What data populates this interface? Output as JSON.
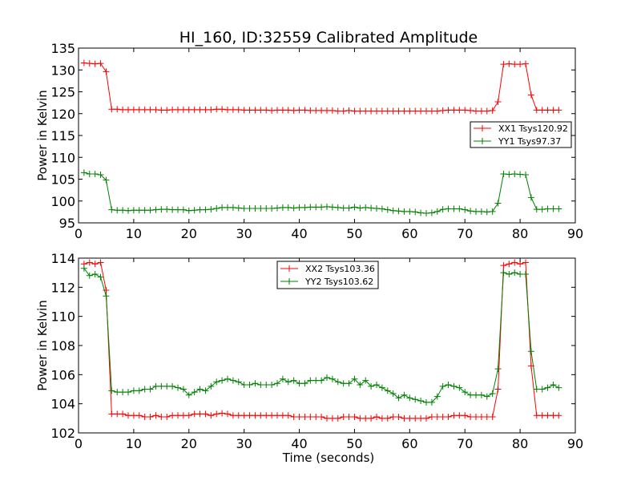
{
  "chart_data": [
    {
      "type": "line",
      "title": "HI_160, ID:32559 Calibrated Amplitude",
      "xlabel": "",
      "ylabel": "Power in Kelvin",
      "xlim": [
        0,
        90
      ],
      "ylim": [
        95,
        135
      ],
      "xticks": [
        "0",
        "10",
        "20",
        "30",
        "40",
        "50",
        "60",
        "70",
        "80",
        "90"
      ],
      "yticks": [
        "95",
        "100",
        "105",
        "110",
        "115",
        "120",
        "125",
        "130",
        "135"
      ],
      "grid": false,
      "legend_position": "right",
      "x": [
        1,
        2,
        3,
        4,
        5,
        6,
        7,
        8,
        9,
        10,
        11,
        12,
        13,
        14,
        15,
        16,
        17,
        18,
        19,
        20,
        21,
        22,
        23,
        24,
        25,
        26,
        27,
        28,
        29,
        30,
        31,
        32,
        33,
        34,
        35,
        36,
        37,
        38,
        39,
        40,
        41,
        42,
        43,
        44,
        45,
        46,
        47,
        48,
        49,
        50,
        51,
        52,
        53,
        54,
        55,
        56,
        57,
        58,
        59,
        60,
        61,
        62,
        63,
        64,
        65,
        66,
        67,
        68,
        69,
        70,
        71,
        72,
        73,
        74,
        75,
        76,
        77,
        78,
        79,
        80,
        81,
        82,
        83,
        84,
        85,
        86,
        87
      ],
      "series": [
        {
          "name": "XX1 Tsys120.92",
          "color": "#ff0000",
          "values": [
            131.6,
            131.5,
            131.4,
            131.5,
            129.6,
            121.0,
            121.0,
            120.9,
            120.9,
            120.9,
            120.9,
            120.9,
            120.9,
            120.9,
            120.8,
            120.8,
            120.9,
            120.9,
            120.9,
            120.9,
            120.9,
            120.9,
            120.9,
            120.9,
            121.0,
            121.0,
            120.9,
            120.9,
            120.9,
            120.8,
            120.8,
            120.8,
            120.8,
            120.8,
            120.7,
            120.8,
            120.8,
            120.8,
            120.7,
            120.8,
            120.8,
            120.7,
            120.7,
            120.7,
            120.7,
            120.7,
            120.6,
            120.6,
            120.7,
            120.6,
            120.6,
            120.6,
            120.6,
            120.6,
            120.6,
            120.6,
            120.6,
            120.6,
            120.6,
            120.6,
            120.6,
            120.6,
            120.6,
            120.6,
            120.6,
            120.7,
            120.8,
            120.8,
            120.8,
            120.8,
            120.7,
            120.6,
            120.6,
            120.6,
            120.7,
            122.7,
            131.3,
            131.4,
            131.3,
            131.3,
            131.4,
            124.3,
            120.8,
            120.8,
            120.8,
            120.8,
            120.8
          ]
        },
        {
          "name": "YY1 Tsys97.37",
          "color": "#008000",
          "values": [
            106.5,
            106.2,
            106.2,
            106.0,
            104.8,
            98.0,
            97.9,
            97.9,
            97.8,
            97.9,
            97.9,
            97.9,
            97.9,
            98.0,
            98.1,
            98.1,
            98.0,
            98.0,
            98.0,
            97.8,
            97.9,
            98.0,
            98.0,
            98.1,
            98.3,
            98.5,
            98.5,
            98.5,
            98.4,
            98.3,
            98.3,
            98.3,
            98.3,
            98.3,
            98.3,
            98.4,
            98.5,
            98.5,
            98.4,
            98.5,
            98.5,
            98.6,
            98.6,
            98.6,
            98.7,
            98.6,
            98.5,
            98.4,
            98.4,
            98.6,
            98.4,
            98.5,
            98.4,
            98.3,
            98.2,
            98.0,
            97.8,
            97.7,
            97.6,
            97.6,
            97.5,
            97.3,
            97.2,
            97.3,
            97.6,
            98.1,
            98.2,
            98.2,
            98.2,
            98.0,
            97.7,
            97.6,
            97.6,
            97.5,
            97.6,
            99.5,
            106.2,
            106.1,
            106.2,
            106.1,
            106.0,
            100.8,
            98.1,
            98.1,
            98.2,
            98.2,
            98.2
          ]
        }
      ]
    },
    {
      "type": "line",
      "title": "",
      "xlabel": "Time (seconds)",
      "ylabel": "Power in Kelvin",
      "xlim": [
        0,
        90
      ],
      "ylim": [
        102,
        114
      ],
      "xticks": [
        "0",
        "10",
        "20",
        "30",
        "40",
        "50",
        "60",
        "70",
        "80",
        "90"
      ],
      "yticks": [
        "102",
        "104",
        "106",
        "108",
        "110",
        "112",
        "114"
      ],
      "grid": false,
      "legend_position": "top-center",
      "x": [
        1,
        2,
        3,
        4,
        5,
        6,
        7,
        8,
        9,
        10,
        11,
        12,
        13,
        14,
        15,
        16,
        17,
        18,
        19,
        20,
        21,
        22,
        23,
        24,
        25,
        26,
        27,
        28,
        29,
        30,
        31,
        32,
        33,
        34,
        35,
        36,
        37,
        38,
        39,
        40,
        41,
        42,
        43,
        44,
        45,
        46,
        47,
        48,
        49,
        50,
        51,
        52,
        53,
        54,
        55,
        56,
        57,
        58,
        59,
        60,
        61,
        62,
        63,
        64,
        65,
        66,
        67,
        68,
        69,
        70,
        71,
        72,
        73,
        74,
        75,
        76,
        77,
        78,
        79,
        80,
        81,
        82,
        83,
        84,
        85,
        86,
        87
      ],
      "series": [
        {
          "name": "XX2 Tsys103.36",
          "color": "#ff0000",
          "values": [
            113.6,
            113.7,
            113.6,
            113.7,
            111.8,
            103.3,
            103.3,
            103.3,
            103.2,
            103.2,
            103.2,
            103.1,
            103.1,
            103.2,
            103.1,
            103.1,
            103.2,
            103.2,
            103.2,
            103.2,
            103.3,
            103.3,
            103.3,
            103.2,
            103.3,
            103.35,
            103.3,
            103.2,
            103.2,
            103.2,
            103.2,
            103.2,
            103.2,
            103.2,
            103.2,
            103.2,
            103.2,
            103.2,
            103.1,
            103.1,
            103.1,
            103.1,
            103.1,
            103.1,
            103.0,
            103.0,
            103.0,
            103.1,
            103.1,
            103.1,
            103.0,
            103.0,
            103.0,
            103.1,
            103.0,
            103.0,
            103.1,
            103.1,
            103.0,
            103.0,
            103.0,
            103.0,
            103.0,
            103.1,
            103.1,
            103.1,
            103.1,
            103.2,
            103.2,
            103.2,
            103.1,
            103.1,
            103.1,
            103.1,
            103.1,
            105.0,
            113.5,
            113.6,
            113.7,
            113.6,
            113.7,
            106.6,
            103.2,
            103.2,
            103.2,
            103.2,
            103.2
          ]
        },
        {
          "name": "YY2 Tsys103.62",
          "color": "#008000",
          "values": [
            113.3,
            112.8,
            112.9,
            112.7,
            111.4,
            104.9,
            104.8,
            104.8,
            104.8,
            104.9,
            104.9,
            105.0,
            105.0,
            105.2,
            105.2,
            105.2,
            105.2,
            105.1,
            105.0,
            104.6,
            104.8,
            105.0,
            104.9,
            105.2,
            105.5,
            105.6,
            105.7,
            105.6,
            105.5,
            105.3,
            105.3,
            105.4,
            105.3,
            105.3,
            105.3,
            105.4,
            105.7,
            105.5,
            105.6,
            105.4,
            105.4,
            105.6,
            105.6,
            105.6,
            105.8,
            105.7,
            105.5,
            105.4,
            105.4,
            105.7,
            105.3,
            105.6,
            105.2,
            105.3,
            105.1,
            104.9,
            104.7,
            104.4,
            104.6,
            104.4,
            104.3,
            104.2,
            104.1,
            104.1,
            104.5,
            105.2,
            105.3,
            105.2,
            105.1,
            104.8,
            104.6,
            104.6,
            104.6,
            104.5,
            104.7,
            106.4,
            113.0,
            112.9,
            113.0,
            112.9,
            112.9,
            107.6,
            105.0,
            105.0,
            105.1,
            105.3,
            105.1
          ]
        }
      ]
    }
  ]
}
